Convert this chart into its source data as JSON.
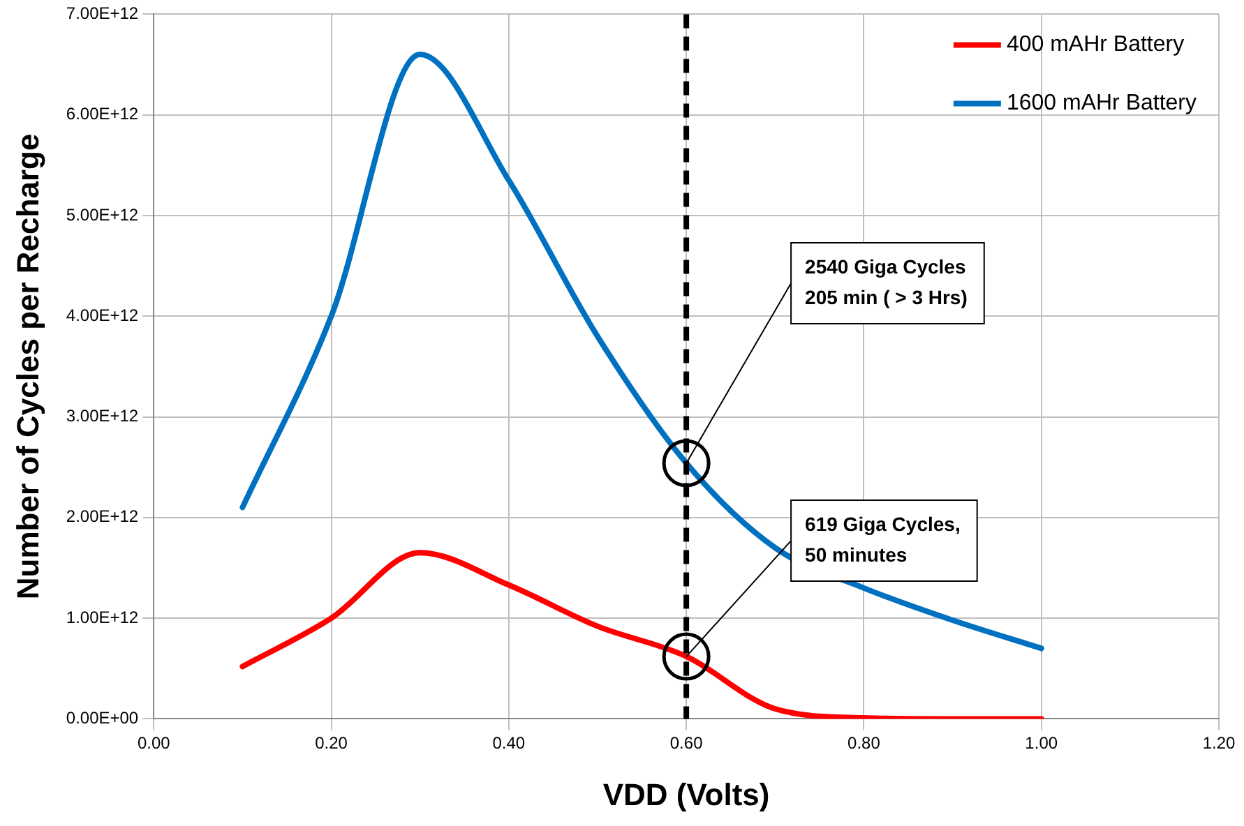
{
  "chart_data": {
    "type": "line",
    "xlabel": "VDD (Volts)",
    "ylabel": "Number of Cycles per Recharge",
    "x": [
      0.1,
      0.2,
      0.3,
      0.4,
      0.5,
      0.6,
      0.7,
      0.8,
      0.9,
      1.0
    ],
    "series": [
      {
        "name": "400 mAHr Battery",
        "color": "#ff0000",
        "values": [
          520000000000.0,
          1000000000000.0,
          1650000000000.0,
          1330000000000.0,
          920000000000.0,
          620000000000.0,
          100000000000.0,
          10000000000.0,
          0,
          0
        ]
      },
      {
        "name": "1600 mAHr Battery",
        "color": "#0070c0",
        "values": [
          2100000000000.0,
          4000000000000.0,
          6600000000000.0,
          5350000000000.0,
          3800000000000.0,
          2540000000000.0,
          1700000000000.0,
          1300000000000.0,
          980000000000.0,
          700000000000.0
        ]
      }
    ],
    "xlim": [
      0,
      1.2
    ],
    "xticks": [
      {
        "value": 0,
        "label": "0.00"
      },
      {
        "value": 0.2,
        "label": "0.20"
      },
      {
        "value": 0.4,
        "label": "0.40"
      },
      {
        "value": 0.6,
        "label": "0.60"
      },
      {
        "value": 0.8,
        "label": "0.80"
      },
      {
        "value": 1,
        "label": "1.00"
      },
      {
        "value": 1.2,
        "label": "1.20"
      }
    ],
    "ylim": [
      0,
      7000000000000.0
    ],
    "yticks": [
      {
        "value": 0,
        "label": "0.00E+00"
      },
      {
        "value": 1000000000000.0,
        "label": "1.00E+12"
      },
      {
        "value": 2000000000000.0,
        "label": "2.00E+12"
      },
      {
        "value": 3000000000000.0,
        "label": "3.00E+12"
      },
      {
        "value": 4000000000000.0,
        "label": "4.00E+12"
      },
      {
        "value": 5000000000000.0,
        "label": "5.00E+12"
      },
      {
        "value": 6000000000000.0,
        "label": "6.00E+12"
      },
      {
        "value": 7000000000000.0,
        "label": "7.00E+12"
      }
    ],
    "ref_lines": [
      {
        "axis": "x",
        "value": 0.6,
        "color": "#000000",
        "line_style": "dashed"
      }
    ],
    "annotations": [
      {
        "text": "2540 Giga Cycles\n205 min ( > 3 Hrs)",
        "x": 0.6,
        "y": 2540000000000.0
      },
      {
        "text": "619 Giga Cycles,\n50 minutes",
        "x": 0.6,
        "y": 619000000000.0
      }
    ],
    "grid": true,
    "legend": "top right",
    "marker": "none",
    "line_style": "solid"
  }
}
